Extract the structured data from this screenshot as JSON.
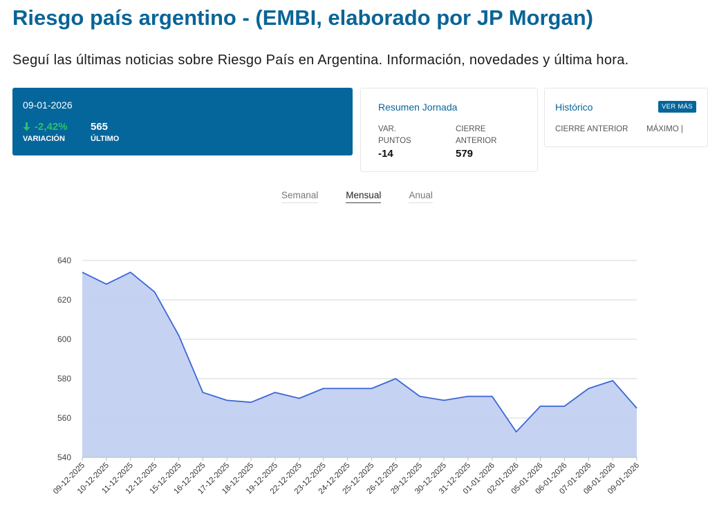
{
  "page": {
    "title": "Riesgo país argentino - (EMBI, elaborado por JP Morgan)",
    "subtitle": "Seguí las últimas noticias sobre Riesgo País en Argentina. Información, novedades y última hora."
  },
  "summary": {
    "date": "09-01-2026",
    "variation_value": "-2,42%",
    "variation_label": "VARIACIÓN",
    "last_value": "565",
    "last_label": "ÚLTIMO"
  },
  "resumen": {
    "title": "Resumen Jornada",
    "var_label_1": "VAR.",
    "var_label_2": "PUNTOS",
    "var_value": "-14",
    "cierre_label_1": "CIERRE",
    "cierre_label_2": "ANTERIOR",
    "cierre_value": "579"
  },
  "historico": {
    "title": "Histórico",
    "button": "VER MÁS",
    "col1": "CIERRE ANTERIOR",
    "col2": "MÁXIMO |"
  },
  "tabs": [
    "Semanal",
    "Mensual",
    "Anual"
  ],
  "active_tab": "Mensual",
  "colors": {
    "brand": "#05669b",
    "positive_green": "#29c26b",
    "line": "#3a66d6",
    "fill": "#c3d0f0"
  },
  "chart_data": {
    "type": "area",
    "categories": [
      "09-12-2025",
      "10-12-2025",
      "11-12-2025",
      "12-12-2025",
      "15-12-2025",
      "16-12-2025",
      "17-12-2025",
      "18-12-2025",
      "19-12-2025",
      "22-12-2025",
      "23-12-2025",
      "24-12-2025",
      "25-12-2025",
      "26-12-2025",
      "29-12-2025",
      "30-12-2025",
      "31-12-2025",
      "01-01-2026",
      "02-01-2026",
      "05-01-2026",
      "06-01-2026",
      "07-01-2026",
      "08-01-2026",
      "09-01-2026"
    ],
    "values": [
      634,
      628,
      634,
      624,
      602,
      573,
      569,
      568,
      573,
      570,
      575,
      575,
      575,
      580,
      571,
      569,
      571,
      571,
      553,
      566,
      566,
      575,
      579,
      565
    ],
    "ylim": [
      540,
      640
    ],
    "yticks": [
      "540",
      "560",
      "580",
      "600",
      "620",
      "640"
    ],
    "xlabel": "",
    "ylabel": "",
    "grid": true
  }
}
